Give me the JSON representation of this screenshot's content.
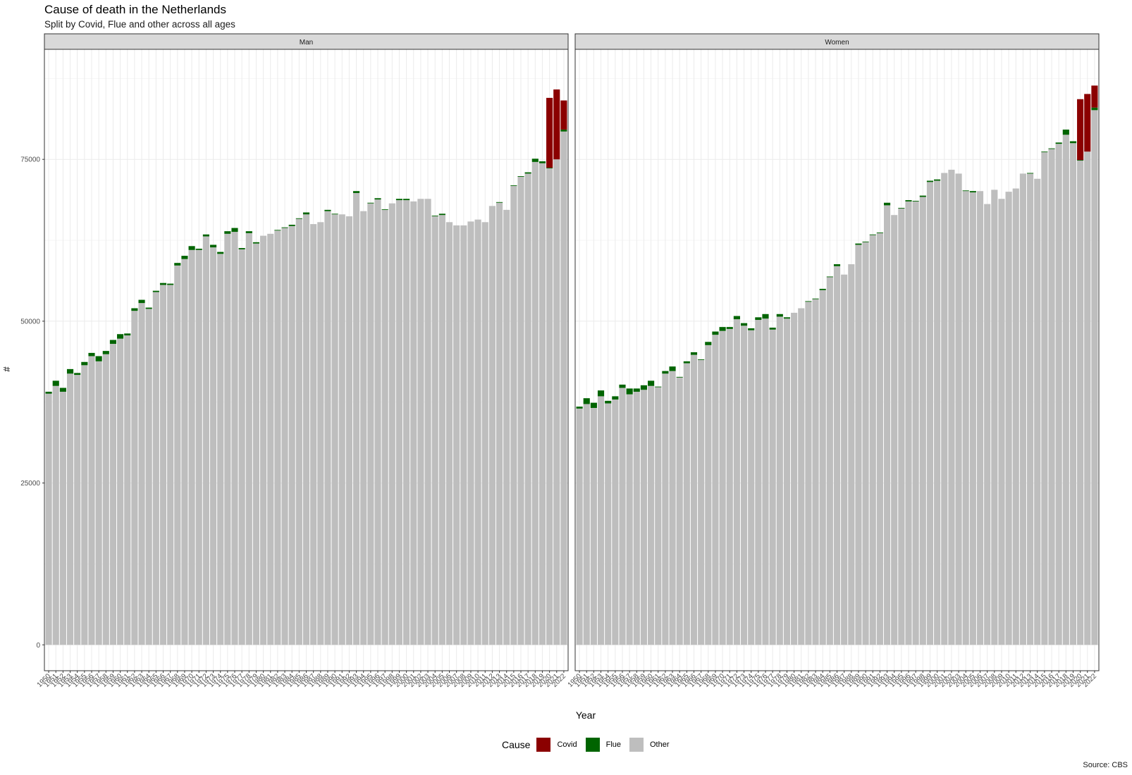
{
  "chart_data": {
    "type": "bar",
    "stacked": true,
    "title": "Cause of death in the Netherlands",
    "subtitle": "Split by Covid, Flue and other across all ages",
    "caption": "Source: CBS",
    "xlabel": "Year",
    "ylabel": "#",
    "y_ticks": [
      0,
      25000,
      50000,
      75000
    ],
    "ylim": [
      -4000,
      92000
    ],
    "legend": {
      "title": "Cause",
      "position": "bottom",
      "items": [
        {
          "name": "Covid",
          "color": "#8b0000"
        },
        {
          "name": "Flue",
          "color": "#006400"
        },
        {
          "name": "Other",
          "color": "#bebebe"
        }
      ]
    },
    "x": [
      1950,
      1951,
      1952,
      1953,
      1954,
      1955,
      1956,
      1957,
      1958,
      1959,
      1960,
      1961,
      1962,
      1963,
      1964,
      1965,
      1966,
      1967,
      1968,
      1969,
      1970,
      1971,
      1972,
      1973,
      1974,
      1975,
      1976,
      1977,
      1978,
      1979,
      1980,
      1981,
      1982,
      1983,
      1984,
      1985,
      1986,
      1987,
      1988,
      1989,
      1990,
      1991,
      1992,
      1993,
      1994,
      1995,
      1996,
      1997,
      1998,
      1999,
      2000,
      2001,
      2002,
      2003,
      2004,
      2005,
      2006,
      2007,
      2008,
      2009,
      2010,
      2011,
      2012,
      2013,
      2014,
      2015,
      2016,
      2017,
      2018,
      2019,
      2020,
      2021,
      2022
    ],
    "panels": [
      {
        "name": "Man",
        "series": [
          {
            "name": "Other",
            "values": [
              38800,
              40000,
              39100,
              41900,
              41700,
              43200,
              44600,
              43800,
              44900,
              46500,
              47300,
              47800,
              51600,
              52800,
              51900,
              54500,
              55600,
              55600,
              58600,
              59600,
              61000,
              61000,
              63100,
              61400,
              60400,
              63500,
              63800,
              61100,
              63600,
              62000,
              63200,
              63500,
              64000,
              64400,
              64700,
              65800,
              66500,
              65000,
              65300,
              67000,
              66500,
              66500,
              66200,
              69800,
              67000,
              68200,
              68800,
              67200,
              68200,
              68700,
              68700,
              68500,
              68900,
              68900,
              66200,
              66400,
              65300,
              64800,
              64800,
              65400,
              65700,
              65300,
              67800,
              68300,
              67200,
              70900,
              72300,
              72800,
              74600,
              74400,
              73600,
              75000,
              79300
            ]
          },
          {
            "name": "Flue",
            "values": [
              300,
              800,
              600,
              700,
              300,
              500,
              500,
              800,
              500,
              600,
              700,
              300,
              400,
              500,
              200,
              200,
              300,
              200,
              400,
              500,
              600,
              200,
              300,
              400,
              300,
              400,
              600,
              200,
              300,
              200,
              0,
              0,
              100,
              100,
              200,
              100,
              300,
              0,
              0,
              200,
              100,
              0,
              0,
              300,
              0,
              100,
              200,
              100,
              0,
              200,
              200,
              0,
              0,
              0,
              100,
              200,
              0,
              0,
              0,
              0,
              0,
              0,
              0,
              100,
              0,
              100,
              100,
              200,
              500,
              300,
              100,
              0,
              300
            ]
          },
          {
            "name": "Covid",
            "values": [
              0,
              0,
              0,
              0,
              0,
              0,
              0,
              0,
              0,
              0,
              0,
              0,
              0,
              0,
              0,
              0,
              0,
              0,
              0,
              0,
              0,
              0,
              0,
              0,
              0,
              0,
              0,
              0,
              0,
              0,
              0,
              0,
              0,
              0,
              0,
              0,
              0,
              0,
              0,
              0,
              0,
              0,
              0,
              0,
              0,
              0,
              0,
              0,
              0,
              0,
              0,
              0,
              0,
              0,
              0,
              0,
              0,
              0,
              0,
              0,
              0,
              0,
              0,
              0,
              0,
              0,
              0,
              0,
              0,
              0,
              10800,
              10800,
              4500
            ]
          }
        ]
      },
      {
        "name": "Women",
        "series": [
          {
            "name": "Other",
            "values": [
              36500,
              37200,
              36600,
              38400,
              37300,
              37900,
              39700,
              38700,
              39100,
              39400,
              40000,
              39800,
              41900,
              42300,
              41300,
              43500,
              44800,
              44000,
              46300,
              47900,
              48500,
              48800,
              50300,
              49300,
              48600,
              50200,
              50400,
              48700,
              50700,
              50400,
              51300,
              52000,
              53000,
              53400,
              54800,
              56800,
              58500,
              57200,
              58800,
              61800,
              62200,
              63300,
              63600,
              67900,
              66400,
              67400,
              68500,
              68500,
              69200,
              71500,
              71700,
              72900,
              73400,
              72800,
              70100,
              69900,
              70100,
              68100,
              70300,
              68900,
              70000,
              70500,
              72800,
              72800,
              72000,
              76100,
              76600,
              77400,
              78800,
              77500,
              74800,
              76200,
              82600
            ]
          },
          {
            "name": "Flue",
            "values": [
              300,
              900,
              800,
              900,
              400,
              500,
              500,
              900,
              500,
              700,
              800,
              100,
              400,
              700,
              100,
              300,
              400,
              100,
              500,
              500,
              600,
              300,
              500,
              400,
              300,
              400,
              700,
              300,
              400,
              200,
              0,
              0,
              100,
              100,
              200,
              100,
              300,
              0,
              0,
              200,
              100,
              100,
              100,
              400,
              0,
              100,
              200,
              100,
              200,
              200,
              200,
              0,
              0,
              0,
              100,
              200,
              0,
              0,
              0,
              0,
              0,
              0,
              0,
              100,
              0,
              100,
              100,
              200,
              800,
              300,
              100,
              0,
              400
            ]
          },
          {
            "name": "Covid",
            "values": [
              0,
              0,
              0,
              0,
              0,
              0,
              0,
              0,
              0,
              0,
              0,
              0,
              0,
              0,
              0,
              0,
              0,
              0,
              0,
              0,
              0,
              0,
              0,
              0,
              0,
              0,
              0,
              0,
              0,
              0,
              0,
              0,
              0,
              0,
              0,
              0,
              0,
              0,
              0,
              0,
              0,
              0,
              0,
              0,
              0,
              0,
              0,
              0,
              0,
              0,
              0,
              0,
              0,
              0,
              0,
              0,
              0,
              0,
              0,
              0,
              0,
              0,
              0,
              0,
              0,
              0,
              0,
              0,
              0,
              0,
              9400,
              8900,
              3400
            ]
          }
        ]
      }
    ]
  }
}
